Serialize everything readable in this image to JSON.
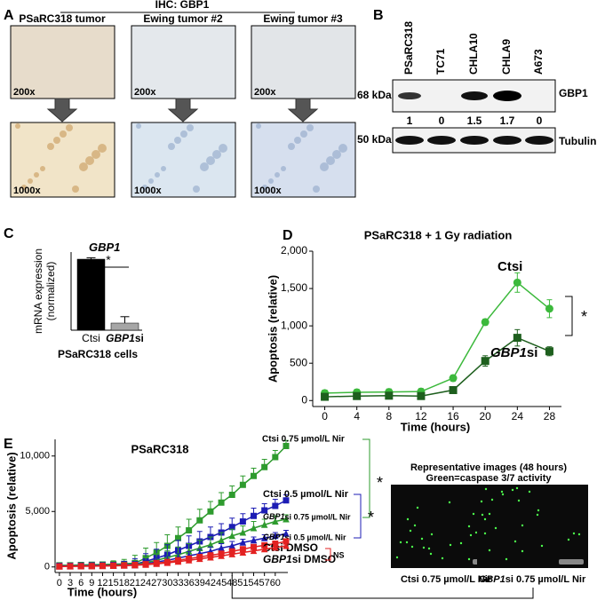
{
  "panel_a": {
    "label": "A",
    "heading": "IHC: GBP1",
    "columns": [
      {
        "title": "PSaRC318 tumor",
        "top_mag": "200x",
        "bottom_mag": "1000x"
      },
      {
        "title": "Ewing tumor #2",
        "top_mag": "200x",
        "bottom_mag": "1000x"
      },
      {
        "title": "Ewing tumor #3",
        "top_mag": "200x",
        "bottom_mag": "1000x"
      }
    ]
  },
  "panel_b": {
    "label": "B",
    "lanes": [
      "PSaRC318",
      "TC71",
      "CHLA10",
      "CHLA9",
      "A673"
    ],
    "upper_marker": "68 kDa",
    "upper_protein": "GBP1",
    "quantification": [
      1,
      0,
      1.5,
      1.7,
      0
    ],
    "lower_marker": "50 kDa",
    "lower_protein": "Tubulin"
  },
  "chart_data": [
    {
      "type": "bar",
      "panel": "C",
      "title": "GBP1",
      "ylabel": "mRNA expression\n(normalized)",
      "xlabel": "PSaRC318 cells",
      "categories": [
        "Ctsi",
        "GBP1si"
      ],
      "values": [
        1.0,
        0.1
      ],
      "errors": [
        0.02,
        0.09
      ],
      "colors": [
        "#000000",
        "#a6a6a6"
      ],
      "ylim": [
        0,
        1.1
      ],
      "annotations": [
        "*"
      ]
    },
    {
      "type": "line",
      "panel": "D",
      "title": "PSaRC318 + 1 Gy radiation",
      "ylabel": "Apoptosis (relative)",
      "xlabel": "Time (hours)",
      "x": [
        0,
        4,
        8,
        12,
        16,
        20,
        24,
        28
      ],
      "series": [
        {
          "name": "Ctsi",
          "color": "#3cb93c",
          "marker": "circle",
          "values": [
            100,
            110,
            115,
            120,
            300,
            1050,
            1580,
            1230
          ],
          "errors": [
            40,
            40,
            40,
            40,
            40,
            40,
            130,
            120
          ]
        },
        {
          "name": "GBP1si",
          "color": "#1e5f1e",
          "marker": "square",
          "values": [
            50,
            60,
            65,
            60,
            140,
            530,
            840,
            660
          ],
          "errors": [
            40,
            40,
            40,
            40,
            40,
            70,
            110,
            60
          ]
        }
      ],
      "xlim": [
        -1.5,
        29.5
      ],
      "xticks": [
        0,
        4,
        8,
        12,
        16,
        20,
        24,
        28
      ],
      "ylim": [
        -80,
        2000
      ],
      "yticks": [
        0,
        500,
        {
          "value": 1000,
          "label": "1,000"
        },
        {
          "value": 1500,
          "label": "1,500"
        },
        {
          "value": 2000,
          "label": "2,000"
        }
      ],
      "annotations": [
        "*"
      ]
    },
    {
      "type": "line",
      "panel": "E",
      "title": "PSaRC318",
      "ylabel": "Apoptosis (relative)",
      "xlabel": "Time (hours)",
      "x": [
        0,
        3,
        6,
        9,
        12,
        15,
        18,
        21,
        24,
        27,
        30,
        33,
        36,
        39,
        42,
        45,
        48,
        51,
        54,
        57,
        60,
        63
      ],
      "series": [
        {
          "name": "Ctsi 0.75 µmol/L Nir",
          "color": "#2e9b2e",
          "marker": "square",
          "values": [
            150,
            150,
            180,
            200,
            220,
            250,
            280,
            350,
            800,
            1300,
            1900,
            2600,
            3300,
            4200,
            5000,
            5800,
            6500,
            7400,
            8200,
            9000,
            9900,
            10900
          ],
          "errors": [
            200,
            200,
            200,
            200,
            200,
            300,
            400,
            700,
            900,
            900,
            1000,
            1000,
            1000,
            1000,
            900,
            900,
            800,
            800,
            700,
            700,
            600,
            500
          ]
        },
        {
          "name": "Ctsi 0.5 µmol/L Nir",
          "color": "#1c1cb4",
          "marker": "square",
          "values": [
            100,
            100,
            120,
            140,
            150,
            170,
            200,
            250,
            500,
            800,
            1100,
            1500,
            1900,
            2300,
            2700,
            3100,
            3600,
            4100,
            4600,
            5100,
            5500,
            6000
          ],
          "errors": [
            200,
            200,
            200,
            200,
            200,
            250,
            300,
            500,
            700,
            800,
            900,
            900,
            900,
            900,
            900,
            800,
            800,
            700,
            700,
            600,
            600,
            500
          ]
        },
        {
          "name": "GBP1si 0.75 µmol/L Nir",
          "color": "#2e9b2e",
          "marker": "triangle",
          "values": [
            100,
            100,
            110,
            120,
            130,
            150,
            170,
            200,
            400,
            600,
            850,
            1100,
            1400,
            1700,
            2000,
            2400,
            2800,
            3100,
            3500,
            3800,
            4100,
            4300
          ],
          "errors": [
            150,
            150,
            150,
            150,
            150,
            200,
            250,
            400,
            500,
            600,
            600,
            700,
            700,
            700,
            700,
            700,
            600,
            600,
            600,
            500,
            500,
            400
          ]
        },
        {
          "name": "GBP1si 0.5 µmol/L Nir",
          "color": "#1c1cb4",
          "marker": "triangle",
          "values": [
            80,
            80,
            90,
            100,
            110,
            120,
            140,
            160,
            300,
            450,
            600,
            800,
            1000,
            1200,
            1400,
            1700,
            1900,
            2200,
            2400,
            2600,
            2800,
            3000
          ],
          "errors": [
            150,
            150,
            150,
            150,
            150,
            150,
            200,
            300,
            300,
            400,
            400,
            400,
            400,
            400,
            400,
            400,
            400,
            300,
            300,
            300,
            300,
            300
          ]
        },
        {
          "name": "Ctsi DMSO",
          "color": "#e32222",
          "marker": "square",
          "values": [
            50,
            60,
            70,
            80,
            100,
            120,
            150,
            180,
            250,
            350,
            450,
            600,
            750,
            900,
            1050,
            1200,
            1400,
            1600,
            1800,
            1950,
            2100,
            2300
          ],
          "errors": [
            100,
            100,
            100,
            100,
            100,
            100,
            100,
            100,
            150,
            150,
            150,
            150,
            150,
            150,
            150,
            150,
            150,
            150,
            150,
            150,
            150,
            150
          ]
        },
        {
          "name": "GBP1si DMSO",
          "color": "#e32222",
          "marker": "triangle",
          "values": [
            40,
            50,
            60,
            70,
            80,
            100,
            120,
            150,
            200,
            280,
            370,
            480,
            600,
            730,
            860,
            1000,
            1150,
            1300,
            1450,
            1600,
            1750,
            1900
          ],
          "errors": [
            100,
            100,
            100,
            100,
            100,
            100,
            100,
            100,
            150,
            150,
            150,
            150,
            150,
            150,
            150,
            150,
            150,
            150,
            150,
            150,
            150,
            150
          ]
        }
      ],
      "xlim": [
        -1.2,
        63.5
      ],
      "xticks": [
        0,
        3,
        6,
        9,
        12,
        15,
        18,
        21,
        24,
        27,
        30,
        33,
        36,
        39,
        42,
        45,
        48,
        51,
        54,
        57,
        60
      ],
      "ylim": [
        -500,
        11500
      ],
      "yticks": [
        0,
        {
          "value": 5000,
          "label": "5,000"
        },
        {
          "value": 10000,
          "label": "10,000"
        }
      ],
      "annotations": [
        {
          "text": "*",
          "color": "#2e9b2e"
        },
        {
          "text": "*",
          "color": "#1c1cb4"
        },
        {
          "text": "NS",
          "color": "#e32222"
        }
      ],
      "images": {
        "title": "Representative images (48 hours)",
        "subtitle": "Green=caspase 3/7 activity",
        "captions": [
          "Ctsi 0.75 µmol/L Nir",
          "GBP1si 0.75 µmol/L Nir"
        ]
      }
    }
  ]
}
